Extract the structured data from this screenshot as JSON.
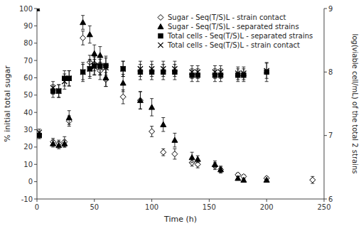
{
  "chart_data": {
    "type": "scatter",
    "xlabel": "Time (h)",
    "ylabel": "% initial total sugar",
    "y2label": "log(viable cell/mL) of the total 2 strains",
    "xlim": [
      0,
      250
    ],
    "xticks": [
      0,
      50,
      100,
      150,
      200,
      250
    ],
    "ylim": [
      -10,
      100
    ],
    "yticks": [
      -10,
      0,
      10,
      20,
      30,
      40,
      50,
      60,
      70,
      80,
      90,
      100
    ],
    "y2lim": [
      6,
      9
    ],
    "y2ticks": [
      6,
      7,
      8,
      9
    ],
    "grid": false,
    "legend": "upper-right",
    "series": [
      {
        "name": "Sugar - Seq(T/S)L - strain contact",
        "axis": "y",
        "marker": "diamond-open",
        "color": "#000000",
        "x": [
          0,
          14,
          19,
          24,
          28,
          40,
          46,
          50,
          55,
          60,
          75,
          90,
          100,
          110,
          120,
          135,
          140,
          155,
          160,
          175,
          180,
          200,
          240
        ],
        "values": [
          100,
          23,
          22,
          23,
          35,
          83,
          69,
          68,
          64,
          59,
          49,
          47,
          29,
          17,
          16,
          11,
          10,
          9,
          7,
          4,
          3,
          2,
          1
        ],
        "errors": [
          0,
          2,
          2,
          3,
          3,
          4,
          4,
          4,
          5,
          4,
          4,
          5,
          3,
          2,
          3,
          2,
          2,
          2,
          1.5,
          1,
          1,
          1,
          2
        ]
      },
      {
        "name": "Sugar - Seq(T/S)L - separated strains",
        "axis": "y",
        "marker": "triangle",
        "color": "#000000",
        "x": [
          0,
          14,
          19,
          24,
          28,
          40,
          46,
          50,
          55,
          60,
          75,
          90,
          100,
          110,
          120,
          135,
          140,
          155,
          160,
          175,
          180,
          200
        ],
        "values": [
          100,
          22,
          21,
          22,
          37,
          92,
          85,
          74,
          73,
          60,
          57,
          47,
          43,
          33,
          24,
          14,
          13,
          10,
          7,
          2,
          1,
          1
        ],
        "errors": [
          0,
          2,
          2,
          2,
          4,
          4,
          5,
          5,
          5,
          5,
          5,
          5,
          5,
          4,
          4,
          3,
          2,
          2,
          2,
          1,
          0.5,
          0.5
        ]
      },
      {
        "name": "Total cells - Seq(T/S)L - separated strains",
        "axis": "y2",
        "marker": "square",
        "color": "#000000",
        "x": [
          2,
          14,
          19,
          24,
          28,
          40,
          46,
          50,
          55,
          60,
          75,
          90,
          100,
          110,
          120,
          135,
          140,
          155,
          160,
          175,
          180,
          200
        ],
        "values": [
          7.0,
          7.7,
          7.7,
          7.9,
          7.9,
          8.0,
          8.05,
          8.1,
          8.1,
          8.1,
          8.05,
          8.0,
          8.0,
          8.0,
          8.0,
          7.95,
          7.95,
          7.95,
          7.95,
          7.95,
          7.95,
          8.0
        ],
        "errors": [
          0.05,
          0.1,
          0.1,
          0.12,
          0.12,
          0.15,
          0.15,
          0.15,
          0.15,
          0.15,
          0.12,
          0.12,
          0.12,
          0.12,
          0.12,
          0.1,
          0.1,
          0.1,
          0.1,
          0.1,
          0.1,
          0.15
        ]
      },
      {
        "name": "Total cells - Seq(T/S)L - strain contact",
        "axis": "y2",
        "marker": "x",
        "color": "#000000",
        "x": [
          2,
          14,
          19,
          24,
          28,
          40,
          46,
          50,
          55,
          60,
          75,
          90,
          100,
          110,
          120,
          135,
          140,
          155,
          160,
          175,
          180,
          200
        ],
        "values": [
          7.05,
          7.75,
          7.7,
          7.85,
          7.9,
          8.0,
          8.05,
          8.08,
          8.08,
          8.07,
          8.05,
          8.05,
          8.05,
          8.05,
          8.05,
          8.0,
          8.0,
          8.0,
          8.0,
          7.98,
          7.98,
          8.02
        ],
        "errors": [
          0.05,
          0.1,
          0.1,
          0.12,
          0.12,
          0.12,
          0.12,
          0.12,
          0.12,
          0.15,
          0.12,
          0.12,
          0.12,
          0.12,
          0.12,
          0.1,
          0.1,
          0.1,
          0.1,
          0.1,
          0.1,
          0.12
        ]
      }
    ]
  }
}
